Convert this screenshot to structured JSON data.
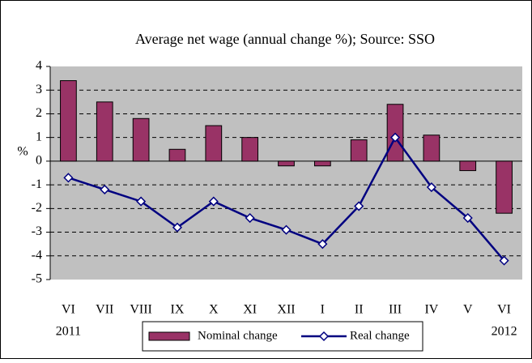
{
  "chart_data": {
    "type": "bar_line",
    "title": "Average net wage (annual change %); Source: SSO",
    "y_label": "%",
    "categories": [
      "VI",
      "VII",
      "VIII",
      "IX",
      "X",
      "XI",
      "XII",
      "I",
      "II",
      "III",
      "IV",
      "V",
      "VI"
    ],
    "year_labels": [
      "2011",
      null,
      null,
      null,
      null,
      null,
      null,
      null,
      null,
      null,
      null,
      null,
      "2012"
    ],
    "series": [
      {
        "name": "Nominal change",
        "type": "bar",
        "color": "#993366",
        "values": [
          3.4,
          2.5,
          1.8,
          0.5,
          1.5,
          1.0,
          -0.2,
          -0.2,
          0.9,
          2.4,
          1.1,
          -0.4,
          -2.2
        ]
      },
      {
        "name": "Real change",
        "type": "line",
        "color": "#000080",
        "values": [
          -0.7,
          -1.2,
          -1.7,
          -2.8,
          -1.7,
          -2.4,
          -2.9,
          -3.5,
          -1.9,
          1.0,
          -1.1,
          -2.4,
          -4.2
        ]
      }
    ],
    "ylim": [
      -5,
      4
    ],
    "yticks": [
      -5,
      -4,
      -3,
      -2,
      -1,
      0,
      1,
      2,
      3,
      4
    ],
    "grid": true
  }
}
